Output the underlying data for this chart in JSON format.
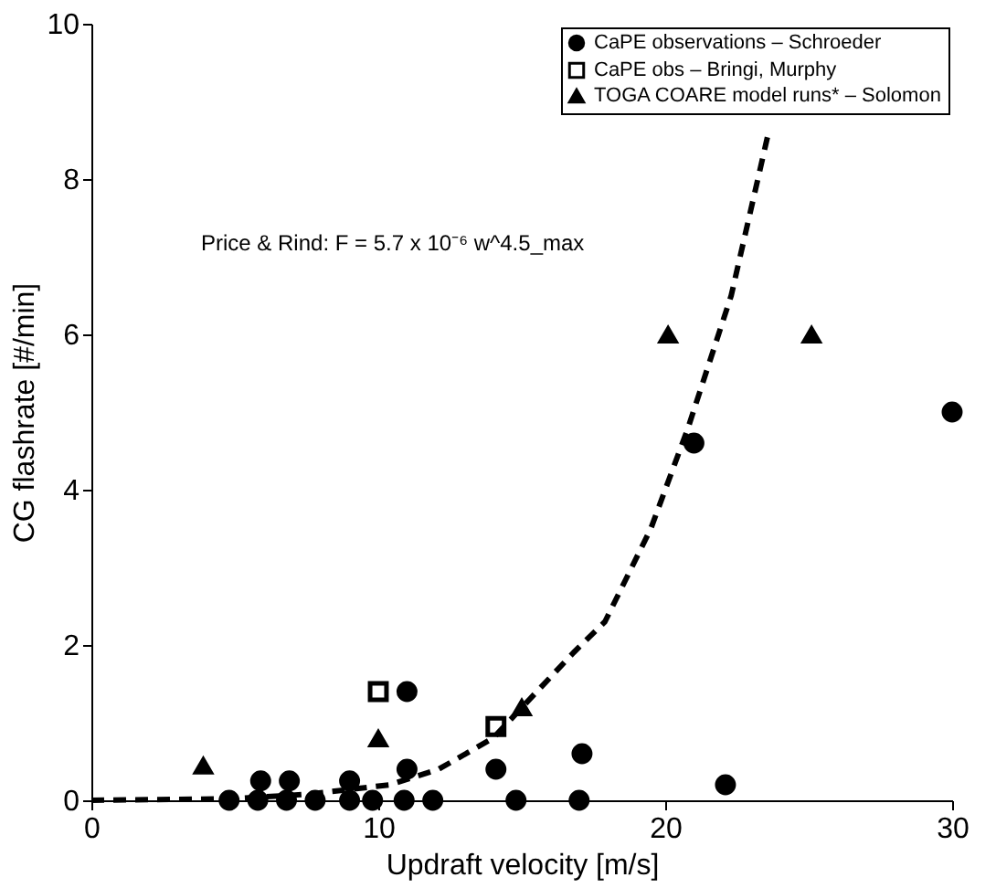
{
  "chart_data": {
    "type": "scatter",
    "xlabel": "Updraft velocity [m/s]",
    "ylabel": "CG flashrate [#/min]",
    "xlim": [
      0,
      30
    ],
    "xticks": [
      0,
      10,
      20,
      30
    ],
    "ylim": [
      0,
      10
    ],
    "yticks": [
      0,
      2,
      4,
      6,
      8,
      10
    ],
    "grid": false,
    "legend": "top right",
    "annotations": [
      "Price & Rind: F = 5.7 x 10⁻⁶ w^4.5_max"
    ],
    "series": [
      {
        "name": "CaPE observations – Schroeder",
        "color": "#000000",
        "marker": "circle",
        "x": [
          4.8,
          5.8,
          6.8,
          7.8,
          9.0,
          9.8,
          10.9,
          11.9,
          14.8,
          17.0,
          22.1,
          5.9,
          6.9,
          9.0,
          11.0,
          11.0,
          14.1,
          17.1,
          21.0,
          30.0
        ],
        "values": [
          0,
          0,
          0,
          0,
          0,
          0,
          0,
          0,
          0,
          0,
          0.2,
          0.25,
          0.25,
          0.25,
          0.4,
          1.4,
          0.4,
          0.6,
          4.6,
          5.0
        ]
      },
      {
        "name": "CaPE obs – Bringi, Murphy",
        "color": "#000000",
        "marker": "square",
        "x": [
          10.0,
          14.1
        ],
        "values": [
          1.4,
          0.95
        ]
      },
      {
        "name": "TOGA COARE model runs* – Solomon",
        "color": "#000000",
        "marker": "triangle",
        "x": [
          3.9,
          10.0,
          15.0,
          20.1,
          25.1
        ],
        "values": [
          0.45,
          0.8,
          1.2,
          6.0,
          6.0
        ]
      },
      {
        "type": "line",
        "color": "#000000",
        "marker": "none",
        "line_style": "dashed",
        "x": [
          0,
          5,
          7.6,
          10.4,
          12.1,
          14,
          16.8,
          17.9,
          19.5,
          20.8,
          22.3,
          23.6
        ],
        "values": [
          0,
          0.02,
          0.08,
          0.2,
          0.4,
          0.8,
          1.9,
          2.3,
          3.5,
          4.8,
          6.5,
          8.6
        ]
      }
    ]
  }
}
